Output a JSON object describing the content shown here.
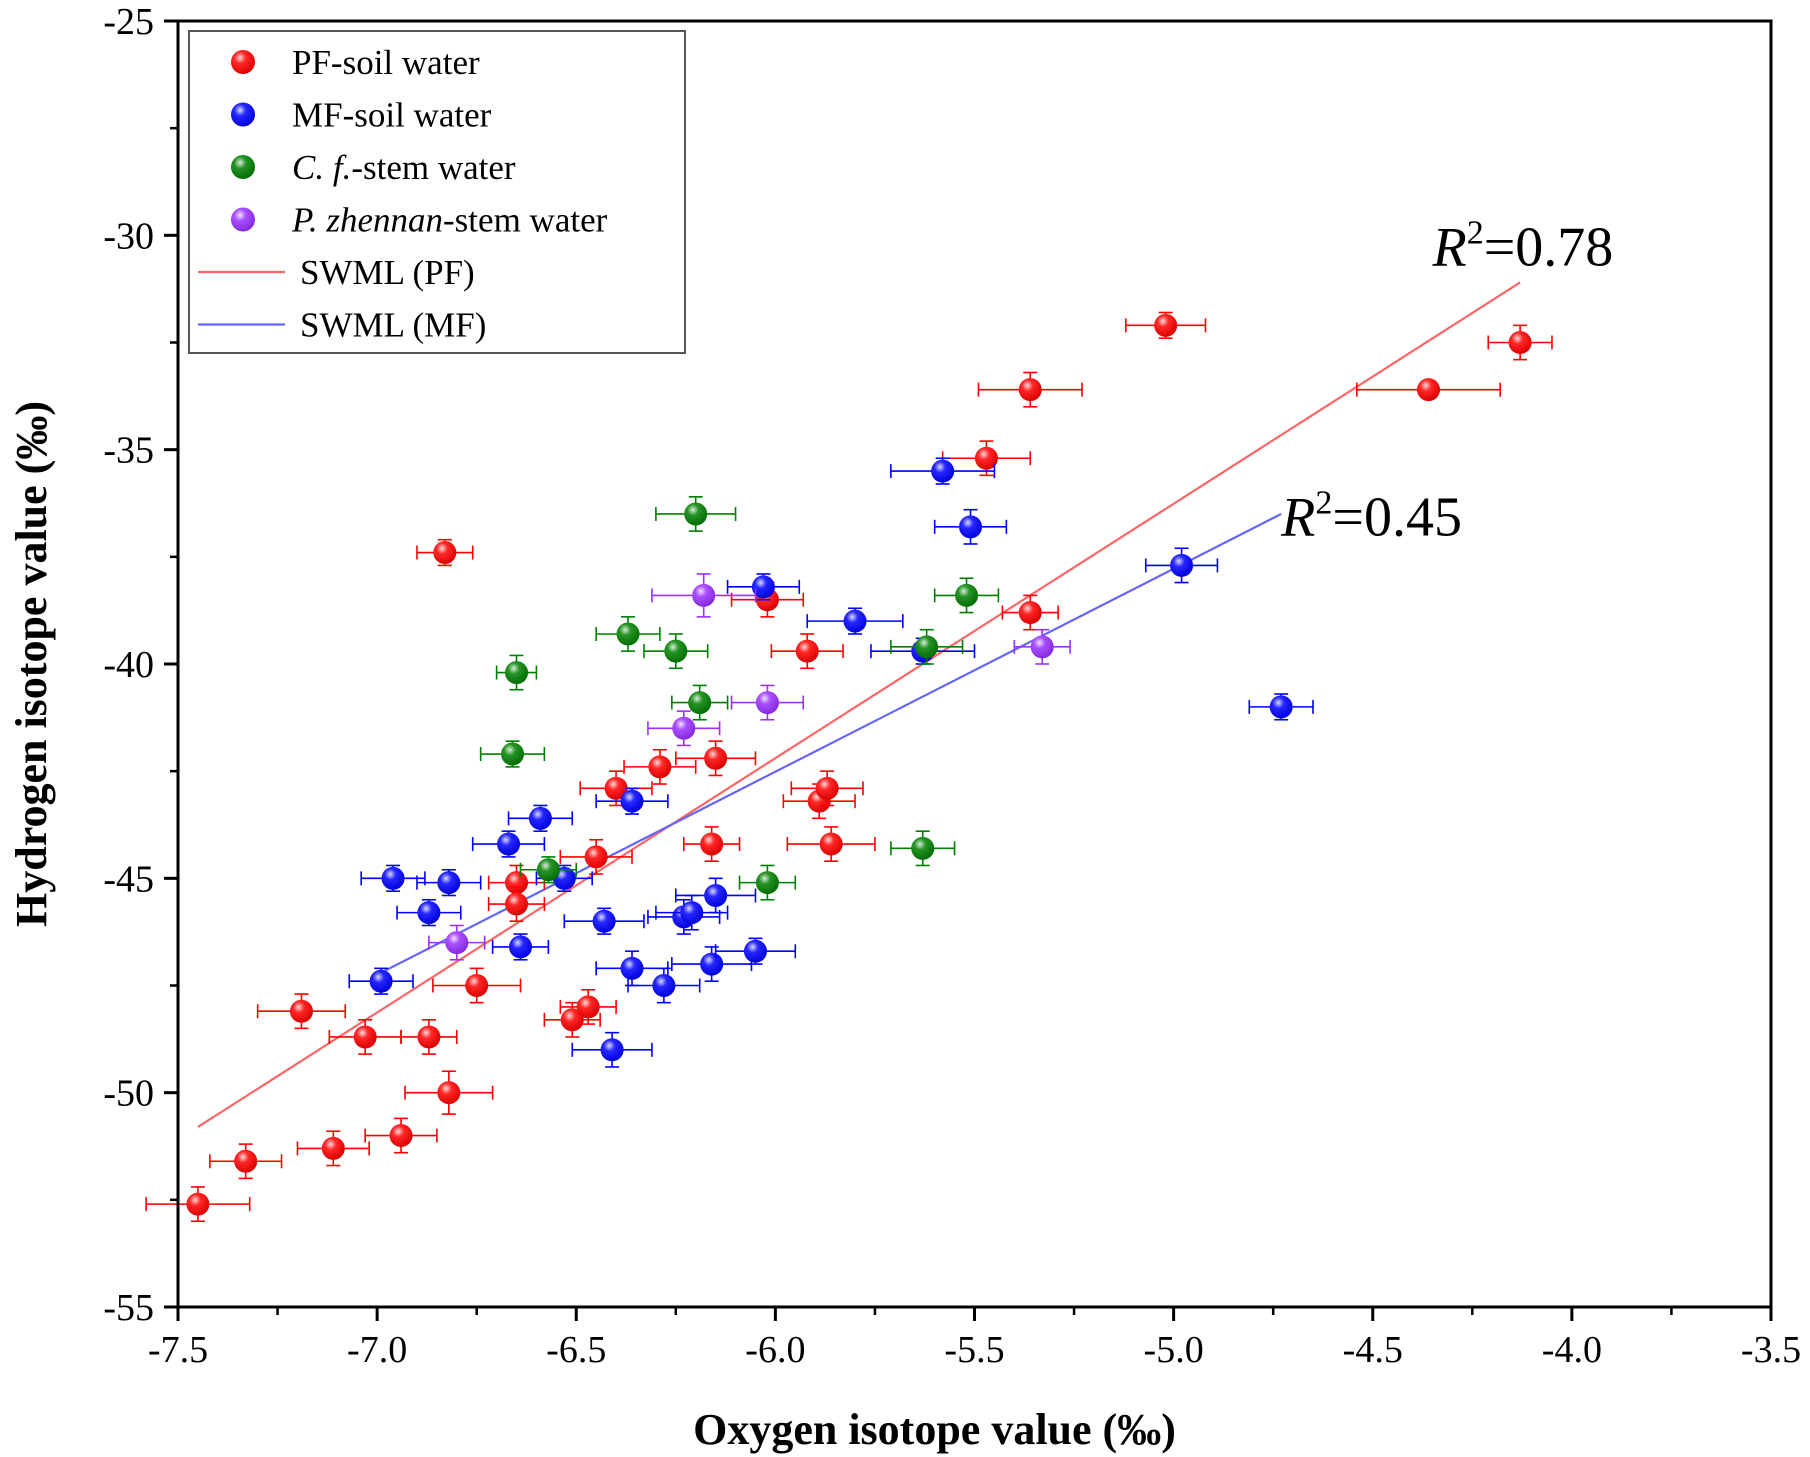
{
  "chart_data": {
    "type": "scatter",
    "xlabel": "Oxygen isotope value (‰)",
    "ylabel": "Hydrogen isotope value (‰)",
    "xlim": [
      -7.5,
      -3.5
    ],
    "ylim": [
      -55,
      -25
    ],
    "xticks": [
      -7.5,
      -7.0,
      -6.5,
      -6.0,
      -5.5,
      -5.0,
      -4.5,
      -4.0,
      -3.5
    ],
    "xtick_labels": [
      "-7.5",
      "-7.0",
      "-6.5",
      "-6.0",
      "-5.5",
      "-5.0",
      "-4.5",
      "-4.0",
      "-3.5"
    ],
    "yticks": [
      -55,
      -50,
      -45,
      -40,
      -35,
      -30,
      -25
    ],
    "ytick_labels": [
      "-55",
      "-50",
      "-45",
      "-40",
      "-35",
      "-30",
      "-25"
    ],
    "grid": false,
    "legend_position": "top-left",
    "series": [
      {
        "name": "PF-soil water",
        "name_italic": "",
        "name_rest": "PF-soil water",
        "color": "#ff0000",
        "points": [
          {
            "x": -7.45,
            "y": -52.6,
            "xerr": 0.13,
            "yerr": 0.4
          },
          {
            "x": -7.33,
            "y": -51.6,
            "xerr": 0.09,
            "yerr": 0.4
          },
          {
            "x": -7.11,
            "y": -51.3,
            "xerr": 0.09,
            "yerr": 0.4
          },
          {
            "x": -6.94,
            "y": -51.0,
            "xerr": 0.09,
            "yerr": 0.4
          },
          {
            "x": -7.19,
            "y": -48.1,
            "xerr": 0.11,
            "yerr": 0.4
          },
          {
            "x": -7.03,
            "y": -48.7,
            "xerr": 0.09,
            "yerr": 0.4
          },
          {
            "x": -6.87,
            "y": -48.7,
            "xerr": 0.07,
            "yerr": 0.4
          },
          {
            "x": -6.82,
            "y": -50.0,
            "xerr": 0.11,
            "yerr": 0.5
          },
          {
            "x": -6.83,
            "y": -37.4,
            "xerr": 0.07,
            "yerr": 0.3
          },
          {
            "x": -6.75,
            "y": -47.5,
            "xerr": 0.11,
            "yerr": 0.4
          },
          {
            "x": -6.51,
            "y": -48.3,
            "xerr": 0.07,
            "yerr": 0.4
          },
          {
            "x": -6.47,
            "y": -48.0,
            "xerr": 0.07,
            "yerr": 0.4
          },
          {
            "x": -6.65,
            "y": -45.1,
            "xerr": 0.07,
            "yerr": 0.4
          },
          {
            "x": -6.65,
            "y": -45.6,
            "xerr": 0.07,
            "yerr": 0.4
          },
          {
            "x": -6.45,
            "y": -44.5,
            "xerr": 0.09,
            "yerr": 0.4
          },
          {
            "x": -6.4,
            "y": -42.9,
            "xerr": 0.09,
            "yerr": 0.4
          },
          {
            "x": -6.29,
            "y": -42.4,
            "xerr": 0.09,
            "yerr": 0.4
          },
          {
            "x": -6.15,
            "y": -42.2,
            "xerr": 0.1,
            "yerr": 0.4
          },
          {
            "x": -6.16,
            "y": -44.2,
            "xerr": 0.07,
            "yerr": 0.4
          },
          {
            "x": -6.02,
            "y": -38.5,
            "xerr": 0.09,
            "yerr": 0.4
          },
          {
            "x": -5.92,
            "y": -39.7,
            "xerr": 0.09,
            "yerr": 0.4
          },
          {
            "x": -5.89,
            "y": -43.2,
            "xerr": 0.09,
            "yerr": 0.4
          },
          {
            "x": -5.87,
            "y": -42.9,
            "xerr": 0.09,
            "yerr": 0.4
          },
          {
            "x": -5.86,
            "y": -44.2,
            "xerr": 0.11,
            "yerr": 0.4
          },
          {
            "x": -5.47,
            "y": -35.2,
            "xerr": 0.11,
            "yerr": 0.4
          },
          {
            "x": -5.36,
            "y": -33.6,
            "xerr": 0.13,
            "yerr": 0.4
          },
          {
            "x": -5.36,
            "y": -38.8,
            "xerr": 0.07,
            "yerr": 0.4
          },
          {
            "x": -5.02,
            "y": -32.1,
            "xerr": 0.1,
            "yerr": 0.3
          },
          {
            "x": -4.36,
            "y": -33.6,
            "xerr": 0.18,
            "yerr": 0.2
          },
          {
            "x": -4.13,
            "y": -32.5,
            "xerr": 0.08,
            "yerr": 0.4
          }
        ]
      },
      {
        "name": "MF-soil water",
        "name_italic": "",
        "name_rest": "MF-soil water",
        "color": "#0000ff",
        "points": [
          {
            "x": -6.99,
            "y": -47.4,
            "xerr": 0.08,
            "yerr": 0.3
          },
          {
            "x": -6.96,
            "y": -45.0,
            "xerr": 0.08,
            "yerr": 0.3
          },
          {
            "x": -6.87,
            "y": -45.8,
            "xerr": 0.08,
            "yerr": 0.3
          },
          {
            "x": -6.82,
            "y": -45.1,
            "xerr": 0.08,
            "yerr": 0.3
          },
          {
            "x": -6.67,
            "y": -44.2,
            "xerr": 0.09,
            "yerr": 0.3
          },
          {
            "x": -6.64,
            "y": -46.6,
            "xerr": 0.07,
            "yerr": 0.3
          },
          {
            "x": -6.59,
            "y": -43.6,
            "xerr": 0.08,
            "yerr": 0.3
          },
          {
            "x": -6.53,
            "y": -45.0,
            "xerr": 0.07,
            "yerr": 0.3
          },
          {
            "x": -6.43,
            "y": -46.0,
            "xerr": 0.1,
            "yerr": 0.3
          },
          {
            "x": -6.41,
            "y": -49.0,
            "xerr": 0.1,
            "yerr": 0.4
          },
          {
            "x": -6.36,
            "y": -43.2,
            "xerr": 0.09,
            "yerr": 0.3
          },
          {
            "x": -6.36,
            "y": -47.1,
            "xerr": 0.09,
            "yerr": 0.4
          },
          {
            "x": -6.28,
            "y": -47.5,
            "xerr": 0.09,
            "yerr": 0.4
          },
          {
            "x": -6.23,
            "y": -45.9,
            "xerr": 0.09,
            "yerr": 0.4
          },
          {
            "x": -6.21,
            "y": -45.8,
            "xerr": 0.09,
            "yerr": 0.4
          },
          {
            "x": -6.15,
            "y": -45.4,
            "xerr": 0.1,
            "yerr": 0.4
          },
          {
            "x": -6.16,
            "y": -47.0,
            "xerr": 0.1,
            "yerr": 0.4
          },
          {
            "x": -6.05,
            "y": -46.7,
            "xerr": 0.1,
            "yerr": 0.3
          },
          {
            "x": -6.03,
            "y": -38.2,
            "xerr": 0.09,
            "yerr": 0.3
          },
          {
            "x": -5.8,
            "y": -39.0,
            "xerr": 0.12,
            "yerr": 0.3
          },
          {
            "x": -5.63,
            "y": -39.7,
            "xerr": 0.13,
            "yerr": 0.3
          },
          {
            "x": -5.58,
            "y": -35.5,
            "xerr": 0.13,
            "yerr": 0.3
          },
          {
            "x": -5.51,
            "y": -36.8,
            "xerr": 0.09,
            "yerr": 0.4
          },
          {
            "x": -4.98,
            "y": -37.7,
            "xerr": 0.09,
            "yerr": 0.4
          },
          {
            "x": -4.73,
            "y": -41.0,
            "xerr": 0.08,
            "yerr": 0.3
          }
        ]
      },
      {
        "name": "C. f.-stem water",
        "name_italic": "C. f.",
        "name_rest": "-stem water",
        "color": "#008000",
        "points": [
          {
            "x": -6.65,
            "y": -40.2,
            "xerr": 0.05,
            "yerr": 0.4
          },
          {
            "x": -6.66,
            "y": -42.1,
            "xerr": 0.08,
            "yerr": 0.3
          },
          {
            "x": -6.57,
            "y": -44.8,
            "xerr": 0.07,
            "yerr": 0.3
          },
          {
            "x": -6.37,
            "y": -39.3,
            "xerr": 0.08,
            "yerr": 0.4
          },
          {
            "x": -6.25,
            "y": -39.7,
            "xerr": 0.08,
            "yerr": 0.4
          },
          {
            "x": -6.2,
            "y": -36.5,
            "xerr": 0.1,
            "yerr": 0.4
          },
          {
            "x": -6.19,
            "y": -40.9,
            "xerr": 0.07,
            "yerr": 0.4
          },
          {
            "x": -6.02,
            "y": -45.1,
            "xerr": 0.07,
            "yerr": 0.4
          },
          {
            "x": -5.63,
            "y": -44.3,
            "xerr": 0.08,
            "yerr": 0.4
          },
          {
            "x": -5.62,
            "y": -39.6,
            "xerr": 0.09,
            "yerr": 0.4
          },
          {
            "x": -5.52,
            "y": -38.4,
            "xerr": 0.08,
            "yerr": 0.4
          }
        ]
      },
      {
        "name": "P. zhennan-stem water",
        "name_italic": "P. zhennan",
        "name_rest": "-stem water",
        "color": "#9b30ff",
        "points": [
          {
            "x": -6.8,
            "y": -46.5,
            "xerr": 0.07,
            "yerr": 0.4
          },
          {
            "x": -6.23,
            "y": -41.5,
            "xerr": 0.09,
            "yerr": 0.4
          },
          {
            "x": -6.18,
            "y": -38.4,
            "xerr": 0.13,
            "yerr": 0.5
          },
          {
            "x": -6.02,
            "y": -40.9,
            "xerr": 0.09,
            "yerr": 0.4
          },
          {
            "x": -5.33,
            "y": -39.6,
            "xerr": 0.07,
            "yerr": 0.4
          }
        ]
      }
    ],
    "lines": [
      {
        "name": "SWML (PF)",
        "color": "#ff6666",
        "x": [
          -7.45,
          -4.13
        ],
        "y": [
          -50.8,
          -31.1
        ]
      },
      {
        "name": "SWML (MF)",
        "color": "#6666ff",
        "x": [
          -6.99,
          -4.73
        ],
        "y": [
          -47.2,
          -36.5
        ]
      }
    ],
    "annotations": [
      {
        "italic": "R",
        "sup": "2",
        "rest": "=0.78",
        "x": -4.35,
        "y": -30.7
      },
      {
        "italic": "R",
        "sup": "2",
        "rest": "=0.45",
        "x": -4.73,
        "y": -37.0
      }
    ]
  }
}
